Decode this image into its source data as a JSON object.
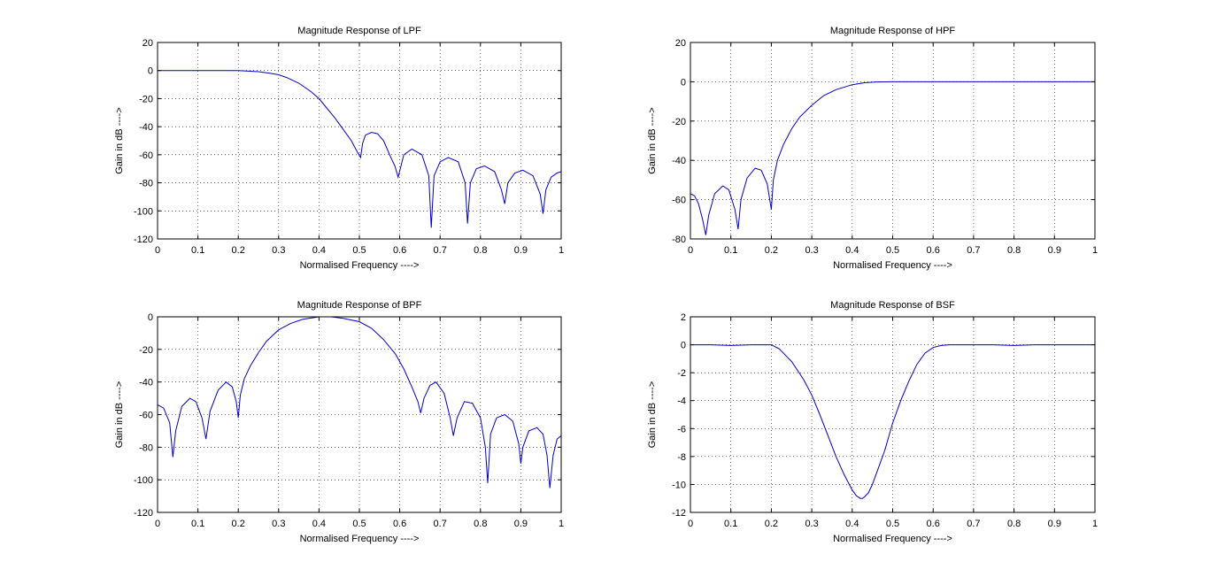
{
  "chart_data": [
    {
      "type": "line",
      "title": "Magnitude Response of LPF",
      "xlabel": "Normalised Frequency ---->",
      "ylabel": "Gain in dB ---->",
      "xlim": [
        0,
        1
      ],
      "ylim": [
        -120,
        20
      ],
      "xticks": [
        0,
        0.1,
        0.2,
        0.3,
        0.4,
        0.5,
        0.6,
        0.7,
        0.8,
        0.9,
        1
      ],
      "yticks": [
        20,
        0,
        -20,
        -40,
        -60,
        -80,
        -100,
        -120
      ],
      "grid": true,
      "line_color": "#0000cc",
      "series": [
        {
          "x": [
            0,
            0.05,
            0.1,
            0.15,
            0.2,
            0.22,
            0.25,
            0.28,
            0.3,
            0.32,
            0.35,
            0.38,
            0.4,
            0.42,
            0.44,
            0.46,
            0.48,
            0.495,
            0.503,
            0.508,
            0.515,
            0.53,
            0.545,
            0.56,
            0.575,
            0.588,
            0.596,
            0.61,
            0.63,
            0.655,
            0.672,
            0.678,
            0.685,
            0.7,
            0.72,
            0.745,
            0.762,
            0.768,
            0.775,
            0.79,
            0.81,
            0.835,
            0.852,
            0.86,
            0.868,
            0.885,
            0.905,
            0.93,
            0.948,
            0.955,
            0.962,
            0.975,
            0.99,
            1
          ],
          "y": [
            0,
            0,
            0,
            0,
            0,
            -0.3,
            -0.8,
            -2,
            -3,
            -5,
            -9,
            -15,
            -20,
            -27,
            -34,
            -42,
            -50,
            -58,
            -62,
            -52,
            -46,
            -44,
            -45,
            -50,
            -60,
            -68,
            -76,
            -60,
            -56,
            -60,
            -75,
            -112,
            -75,
            -65,
            -62,
            -65,
            -80,
            -109,
            -80,
            -70,
            -68,
            -72,
            -85,
            -95,
            -80,
            -73,
            -71,
            -75,
            -88,
            -102,
            -85,
            -76,
            -73,
            -72
          ]
        }
      ]
    },
    {
      "type": "line",
      "title": "Magnitude Response of HPF",
      "xlabel": "Normalised Frequency ---->",
      "ylabel": "Gain in dB ---->",
      "xlim": [
        0,
        1
      ],
      "ylim": [
        -80,
        20
      ],
      "xticks": [
        0,
        0.1,
        0.2,
        0.3,
        0.4,
        0.5,
        0.6,
        0.7,
        0.8,
        0.9,
        1
      ],
      "yticks": [
        20,
        0,
        -20,
        -40,
        -60,
        -80
      ],
      "grid": true,
      "line_color": "#0000cc",
      "series": [
        {
          "x": [
            0,
            0.01,
            0.02,
            0.03,
            0.038,
            0.045,
            0.06,
            0.08,
            0.095,
            0.11,
            0.118,
            0.125,
            0.14,
            0.16,
            0.175,
            0.19,
            0.2,
            0.205,
            0.215,
            0.23,
            0.25,
            0.27,
            0.3,
            0.33,
            0.36,
            0.4,
            0.43,
            0.46,
            0.5,
            0.6,
            0.7,
            0.8,
            0.9,
            1
          ],
          "y": [
            -57,
            -58,
            -62,
            -70,
            -78,
            -68,
            -57,
            -53,
            -55,
            -65,
            -75,
            -60,
            -49,
            -44,
            -45,
            -52,
            -65,
            -50,
            -40,
            -32,
            -24,
            -18,
            -12,
            -7,
            -4,
            -1.5,
            -0.5,
            -0.1,
            0,
            0,
            0,
            0,
            0,
            0
          ]
        }
      ]
    },
    {
      "type": "line",
      "title": "Magnitude Response of BPF",
      "xlabel": "Normalised Frequency ---->",
      "ylabel": "Gain in dB ---->",
      "xlim": [
        0,
        1
      ],
      "ylim": [
        -120,
        0
      ],
      "xticks": [
        0,
        0.1,
        0.2,
        0.3,
        0.4,
        0.5,
        0.6,
        0.7,
        0.8,
        0.9,
        1
      ],
      "yticks": [
        0,
        -20,
        -40,
        -60,
        -80,
        -100,
        -120
      ],
      "grid": true,
      "line_color": "#0000cc",
      "series": [
        {
          "x": [
            0,
            0.015,
            0.03,
            0.038,
            0.045,
            0.06,
            0.08,
            0.095,
            0.11,
            0.12,
            0.13,
            0.15,
            0.17,
            0.185,
            0.195,
            0.2,
            0.205,
            0.215,
            0.23,
            0.25,
            0.27,
            0.3,
            0.33,
            0.36,
            0.4,
            0.43,
            0.46,
            0.5,
            0.53,
            0.56,
            0.59,
            0.61,
            0.63,
            0.645,
            0.652,
            0.66,
            0.675,
            0.69,
            0.71,
            0.725,
            0.733,
            0.742,
            0.76,
            0.78,
            0.8,
            0.812,
            0.818,
            0.825,
            0.84,
            0.86,
            0.88,
            0.895,
            0.9,
            0.905,
            0.92,
            0.94,
            0.955,
            0.965,
            0.972,
            0.98,
            0.99,
            1
          ],
          "y": [
            -54,
            -56,
            -65,
            -86,
            -70,
            -55,
            -50,
            -52,
            -62,
            -75,
            -58,
            -45,
            -40,
            -43,
            -52,
            -62,
            -48,
            -38,
            -30,
            -22,
            -15,
            -8,
            -4,
            -1.5,
            0,
            0,
            -1,
            -3,
            -7,
            -14,
            -23,
            -32,
            -43,
            -52,
            -59,
            -50,
            -42,
            -40,
            -47,
            -62,
            -73,
            -62,
            -52,
            -53,
            -62,
            -80,
            -102,
            -72,
            -62,
            -60,
            -64,
            -78,
            -90,
            -80,
            -70,
            -68,
            -72,
            -85,
            -105,
            -85,
            -75,
            -73
          ]
        }
      ]
    },
    {
      "type": "line",
      "title": "Magnitude Response of BSF",
      "xlabel": "Normalised Frequency ---->",
      "ylabel": "Gain in dB ---->",
      "xlim": [
        0,
        1
      ],
      "ylim": [
        -12,
        2
      ],
      "xticks": [
        0,
        0.1,
        0.2,
        0.3,
        0.4,
        0.5,
        0.6,
        0.7,
        0.8,
        0.9,
        1
      ],
      "yticks": [
        2,
        0,
        -2,
        -4,
        -6,
        -8,
        -10,
        -12
      ],
      "grid": true,
      "line_color": "#0000cc",
      "series": [
        {
          "x": [
            0,
            0.05,
            0.1,
            0.15,
            0.2,
            0.22,
            0.25,
            0.28,
            0.3,
            0.32,
            0.34,
            0.36,
            0.38,
            0.4,
            0.41,
            0.42,
            0.425,
            0.43,
            0.44,
            0.45,
            0.46,
            0.48,
            0.5,
            0.52,
            0.54,
            0.56,
            0.58,
            0.6,
            0.62,
            0.64,
            0.66,
            0.7,
            0.75,
            0.8,
            0.85,
            0.9,
            1
          ],
          "y": [
            0,
            0,
            -0.05,
            0,
            0,
            -0.3,
            -1.2,
            -2.5,
            -3.6,
            -5,
            -6.5,
            -8,
            -9.3,
            -10.4,
            -10.8,
            -11,
            -11,
            -10.9,
            -10.6,
            -10,
            -9.2,
            -7.6,
            -5.6,
            -4,
            -2.6,
            -1.4,
            -0.6,
            -0.2,
            -0.05,
            0,
            0,
            0,
            0,
            -0.05,
            0,
            0,
            0
          ]
        }
      ]
    }
  ]
}
